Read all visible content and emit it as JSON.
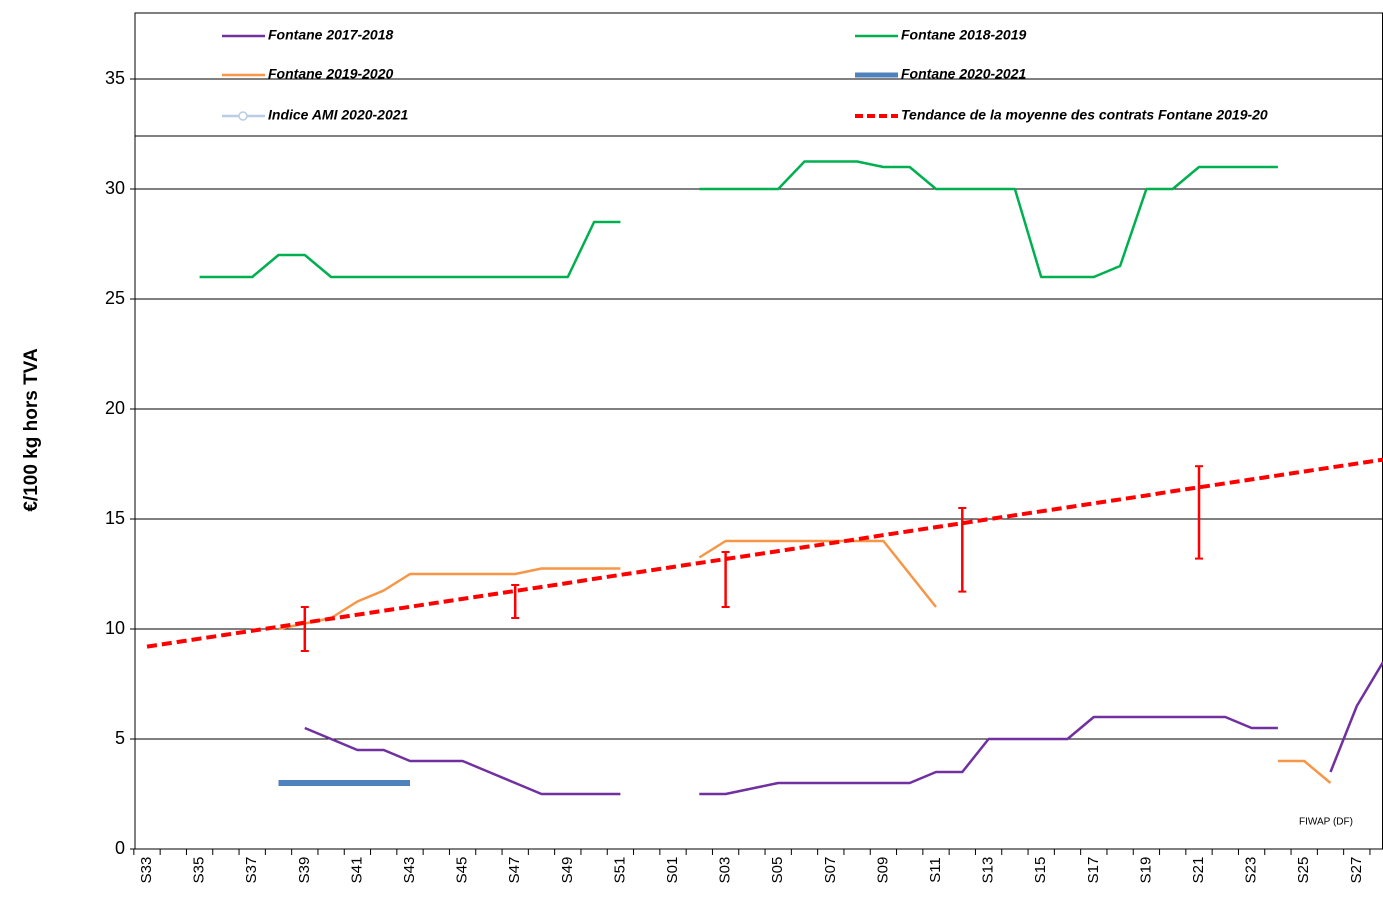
{
  "chart_data": {
    "type": "line",
    "y_label": "€/100 kg hors TVA",
    "annotation": "FIWAP (DF)",
    "categories": [
      "S33",
      null,
      "S35",
      null,
      "S37",
      null,
      "S39",
      null,
      "S41",
      null,
      "S43",
      null,
      "S45",
      null,
      "S47",
      null,
      "S49",
      null,
      "S51",
      null,
      "S01",
      null,
      "S03",
      null,
      "S05",
      null,
      "S07",
      null,
      "S09",
      null,
      "S11",
      null,
      "S13",
      null,
      "S15",
      null,
      "S17",
      null,
      "S19",
      null,
      "S21",
      null,
      "S23",
      null,
      "S25",
      null,
      "S27",
      null
    ],
    "ylim": [
      0,
      38
    ],
    "yticks": [
      0,
      5,
      10,
      15,
      20,
      25,
      30,
      35
    ],
    "grid": true,
    "series": [
      {
        "name": "Fontane 2017-2018",
        "color": "#7030a0",
        "width": 2.5,
        "dash": false,
        "values": [
          null,
          null,
          null,
          null,
          null,
          null,
          5.5,
          5,
          4.5,
          4.5,
          4,
          4,
          4,
          3.5,
          3,
          2.5,
          2.5,
          2.5,
          2.5,
          null,
          null,
          2.5,
          2.5,
          2.75,
          3,
          3,
          3,
          3,
          3,
          3,
          3.5,
          3.5,
          5,
          5,
          5,
          5,
          6,
          6,
          6,
          6,
          6,
          6,
          5.5,
          5.5,
          null,
          3.5,
          6.5,
          8.5
        ]
      },
      {
        "name": "Fontane 2018-2019",
        "color": "#00b050",
        "width": 2.5,
        "dash": false,
        "values": [
          null,
          null,
          26,
          26,
          26,
          27,
          27,
          26,
          26,
          26,
          26,
          26,
          26,
          26,
          26,
          26,
          26,
          28.5,
          28.5,
          null,
          null,
          30,
          30,
          30,
          30,
          31.25,
          31.25,
          31.25,
          31,
          31,
          30,
          30,
          30,
          30,
          26,
          26,
          26,
          26.5,
          30,
          30,
          31,
          31,
          31,
          31,
          null,
          null,
          null,
          null
        ]
      },
      {
        "name": "Fontane 2019-2020",
        "color": "#f79646",
        "width": 2.5,
        "dash": false,
        "values": [
          null,
          null,
          null,
          null,
          null,
          10,
          10.25,
          10.5,
          11.25,
          11.75,
          12.5,
          12.5,
          12.5,
          12.5,
          12.5,
          12.75,
          12.75,
          12.75,
          12.75,
          null,
          null,
          13.25,
          14,
          14,
          14,
          14,
          14,
          14,
          14,
          12.5,
          11,
          null,
          null,
          null,
          null,
          null,
          null,
          null,
          null,
          null,
          null,
          null,
          null,
          4,
          4,
          3,
          null,
          null
        ]
      },
      {
        "name": "Fontane 2020-2021",
        "color": "#4f81bd",
        "width": 6,
        "dash": false,
        "values": [
          null,
          null,
          null,
          null,
          null,
          3,
          3,
          3,
          3,
          3,
          3,
          null,
          null,
          null,
          null,
          null,
          null,
          null,
          null,
          null,
          null,
          null,
          null,
          null,
          null,
          null,
          null,
          null,
          null,
          null,
          null,
          null,
          null,
          null,
          null,
          null,
          null,
          null,
          null,
          null,
          null,
          null,
          null,
          null,
          null,
          null,
          null,
          null
        ]
      },
      {
        "name": "Indice AMI 2020-2021",
        "color": "#b9cde5",
        "width": 2.5,
        "dash": false,
        "marker": "circle",
        "values": [
          null,
          null,
          null,
          null,
          null,
          null,
          null,
          null,
          null,
          null,
          null,
          null,
          null,
          null,
          null,
          null,
          null,
          null,
          null,
          null,
          null,
          null,
          null,
          null,
          null,
          null,
          null,
          null,
          null,
          null,
          null,
          null,
          null,
          null,
          null,
          null,
          null,
          null,
          null,
          null,
          null,
          null,
          null,
          null,
          null,
          null,
          null,
          null
        ]
      },
      {
        "name": "Tendance de la moyenne des contrats Fontane 2019-20",
        "color": "#ff0000",
        "width": 4,
        "dash": true,
        "values": [
          9.2,
          9.38,
          9.56,
          9.74,
          9.92,
          10.1,
          10.29,
          10.47,
          10.65,
          10.83,
          11.01,
          11.19,
          11.37,
          11.55,
          11.73,
          11.91,
          12.09,
          12.28,
          12.46,
          12.64,
          12.82,
          13.0,
          13.18,
          13.36,
          13.54,
          13.72,
          13.9,
          14.08,
          14.27,
          14.45,
          14.63,
          14.81,
          14.99,
          15.17,
          15.35,
          15.53,
          15.71,
          15.89,
          16.07,
          16.26,
          16.44,
          16.62,
          16.8,
          16.98,
          17.16,
          17.34,
          17.52,
          17.7
        ]
      }
    ],
    "error_bars": {
      "color": "#ff0000",
      "ranges": [
        {
          "index": 6,
          "low": 9,
          "high": 11
        },
        {
          "index": 14,
          "low": 10.5,
          "high": 12
        },
        {
          "index": 22,
          "low": 11,
          "high": 13.5
        },
        {
          "index": 31,
          "low": 11.7,
          "high": 15.5
        },
        {
          "index": 40,
          "low": 13.2,
          "high": 17.4
        }
      ]
    }
  }
}
